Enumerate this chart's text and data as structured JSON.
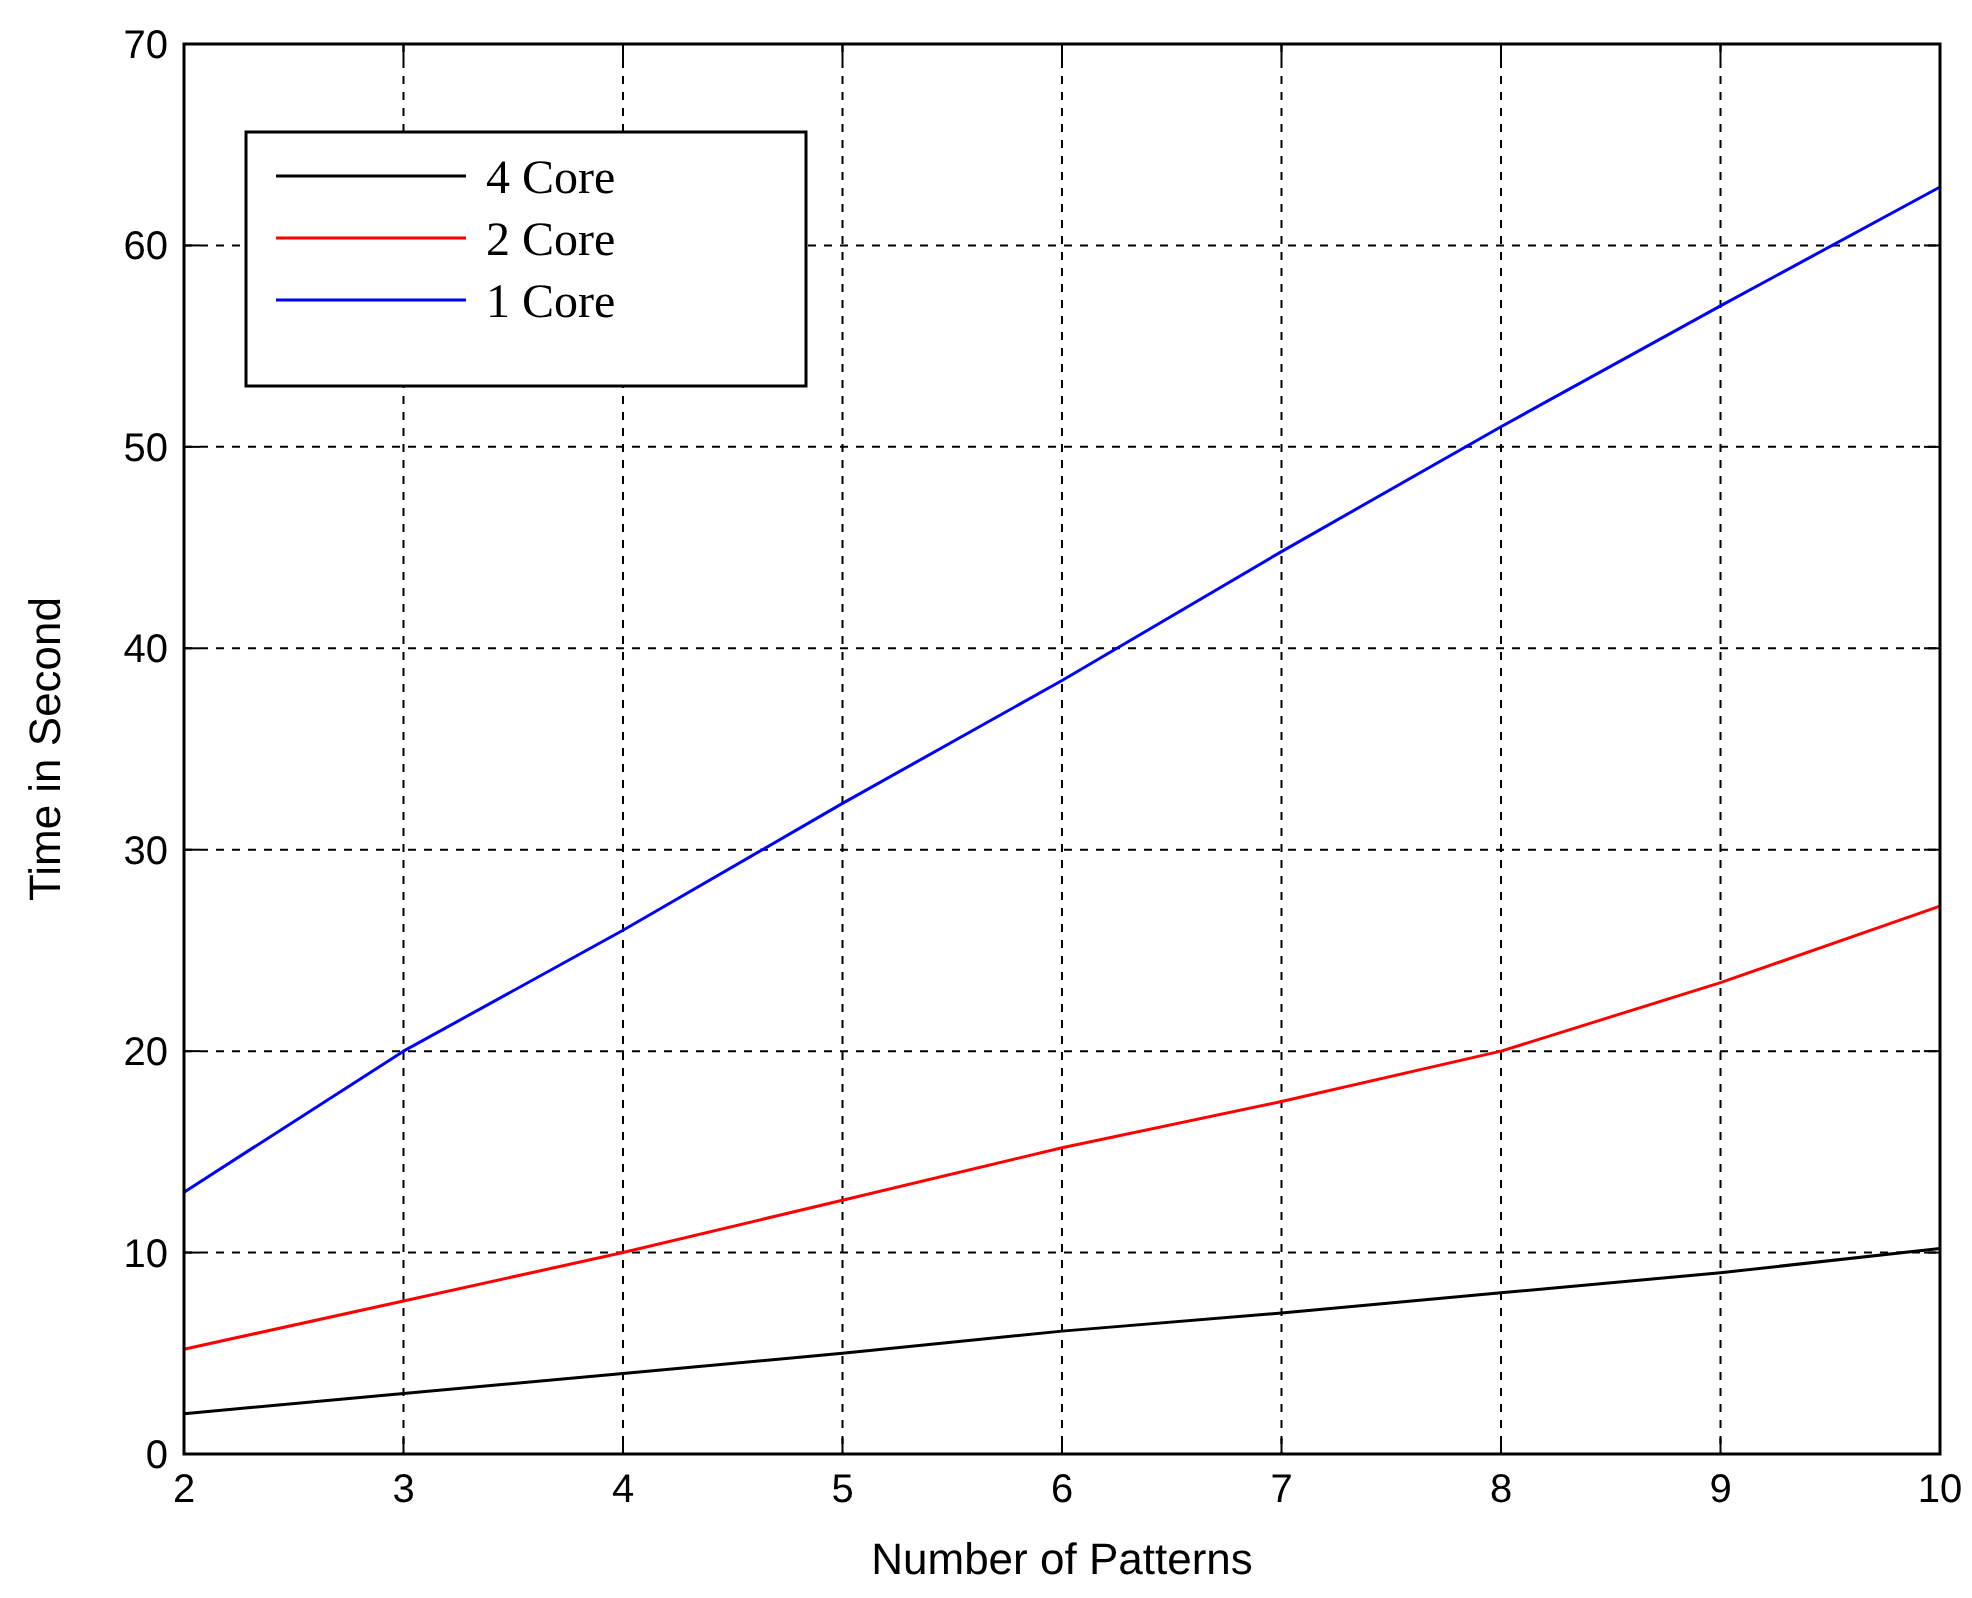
{
  "chart_data": {
    "type": "line",
    "xlabel": "Number of Patterns",
    "ylabel": "Time in Second",
    "x": [
      2,
      3,
      4,
      5,
      6,
      7,
      8,
      9,
      10
    ],
    "series": [
      {
        "name": "4 Core",
        "color": "#000000",
        "values": [
          2,
          3,
          4,
          5,
          6.1,
          7,
          8,
          9,
          10.2
        ]
      },
      {
        "name": "2 Core",
        "color": "#ff0000",
        "values": [
          5.2,
          7.6,
          10,
          12.6,
          15.2,
          17.5,
          20,
          23.4,
          27.2
        ]
      },
      {
        "name": "1 Core",
        "color": "#0000ff",
        "values": [
          13,
          20,
          26,
          32.3,
          38.4,
          44.8,
          51,
          57,
          62.9
        ]
      }
    ],
    "xlim": [
      2,
      10
    ],
    "xticks": [
      2,
      3,
      4,
      5,
      6,
      7,
      8,
      9,
      10
    ],
    "ylim": [
      0,
      70
    ],
    "yticks": [
      0,
      10,
      20,
      30,
      40,
      50,
      60,
      70
    ],
    "grid": true,
    "legend": "top left",
    "line_style": "solid"
  }
}
